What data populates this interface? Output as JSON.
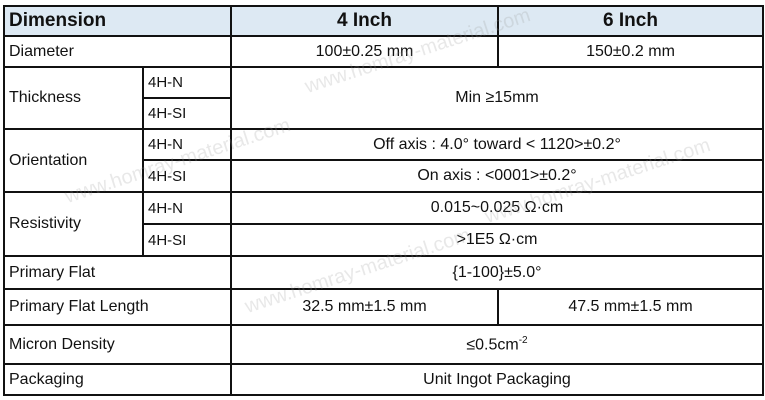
{
  "header": {
    "dimension": "Dimension",
    "col4": "4 Inch",
    "col6": "6 Inch"
  },
  "rows": {
    "diameter": {
      "label": "Diameter",
      "v4": "100±0.25 mm",
      "v6": "150±0.2 mm"
    },
    "thickness": {
      "label": "Thickness",
      "sub1": "4H-N",
      "sub2": "4H-SI",
      "value": "Min ≥15mm"
    },
    "orientation": {
      "label": "Orientation",
      "sub1": "4H-N",
      "sub2": "4H-SI",
      "v1": "Off axis : 4.0° toward < 1120>±0.2°",
      "v2": "On axis : <0001>±0.2°"
    },
    "resistivity": {
      "label": "Resistivity",
      "sub1": "4H-N",
      "sub2": "4H-SI",
      "v1": "0.015~0.025 Ω·cm",
      "v2": ">1E5 Ω·cm"
    },
    "primary_flat": {
      "label": "Primary Flat",
      "value": "{1-100}±5.0°"
    },
    "primary_flat_length": {
      "label": "Primary Flat Length",
      "v4": "32.5 mm±1.5 mm",
      "v6": "47.5 mm±1.5 mm"
    },
    "micron_density": {
      "label": "Micron Density",
      "value": "≤0.5cm",
      "exp": "-2"
    },
    "packaging": {
      "label": "Packaging",
      "value": "Unit Ingot Packaging"
    }
  },
  "watermark": "www.homray-material.com",
  "colors": {
    "header_bg": "#dde9f3",
    "border": "#111111"
  }
}
